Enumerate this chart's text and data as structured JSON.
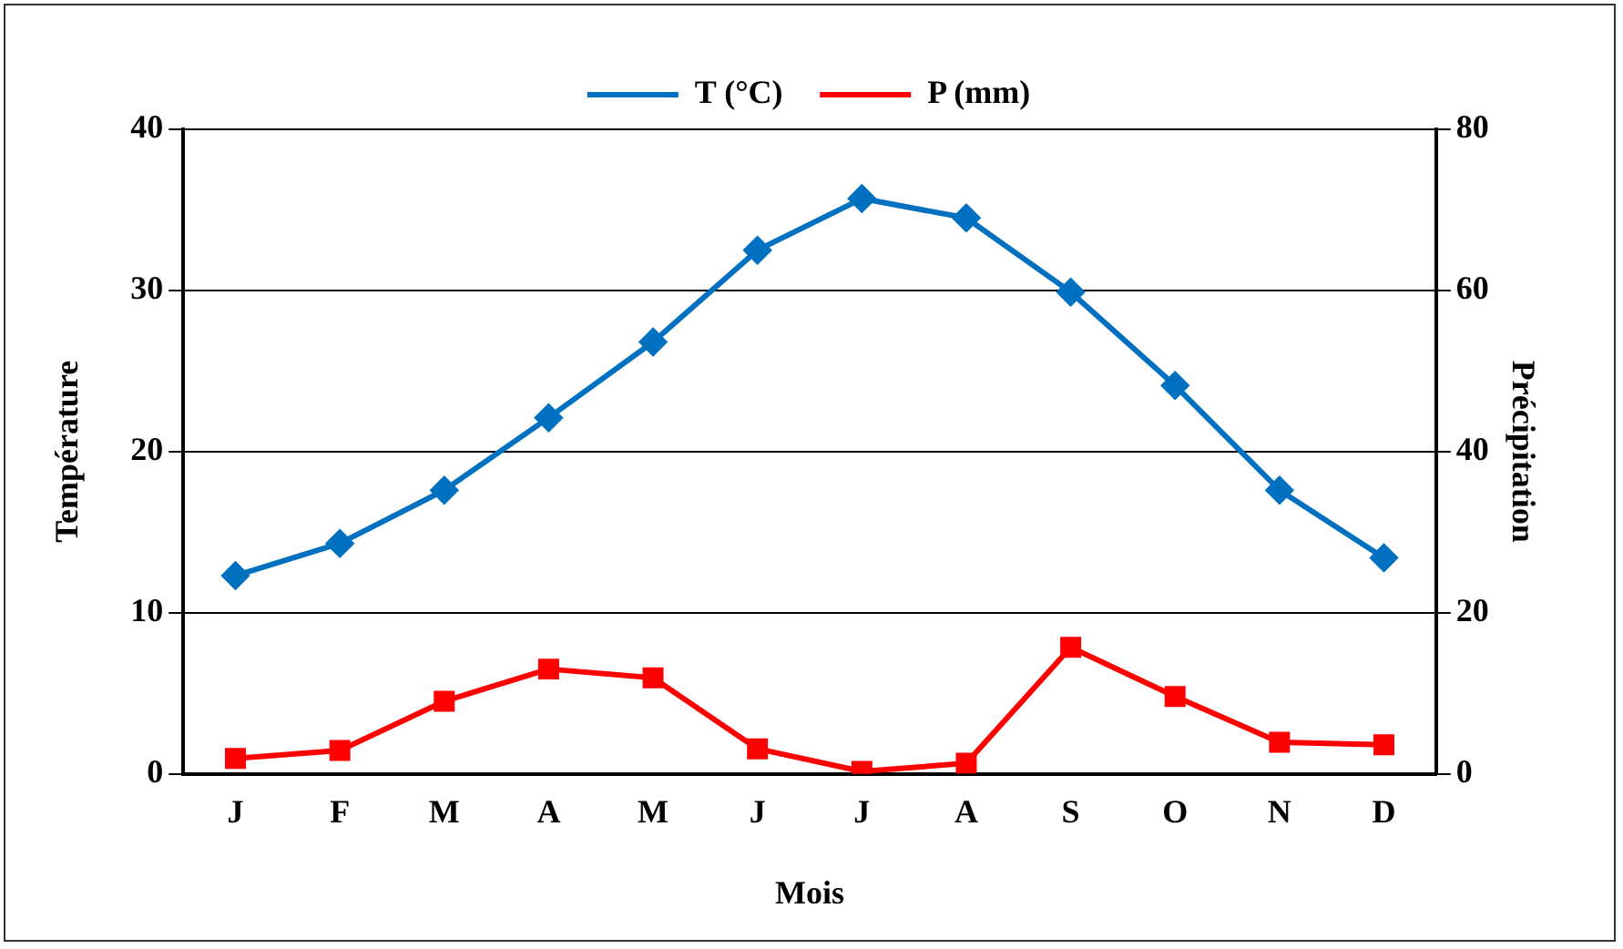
{
  "chart_data": {
    "type": "line",
    "xlabel": "Mois",
    "ylabel": "Température",
    "y2label": "Précipitation",
    "categories": [
      "J",
      "F",
      "M",
      "A",
      "M",
      "J",
      "J",
      "A",
      "S",
      "O",
      "N",
      "D"
    ],
    "series": [
      {
        "name": "T (°C)",
        "color": "#0070c0",
        "marker": "diamond",
        "values": [
          12.3,
          14.3,
          17.6,
          22.1,
          26.8,
          32.5,
          35.7,
          34.5,
          29.9,
          24.1,
          17.6,
          13.4
        ]
      },
      {
        "name": "P (mm)",
        "color": "#ff0000",
        "marker": "square",
        "axis": "y2",
        "values": [
          1.9,
          2.9,
          9.0,
          13.0,
          11.9,
          3.1,
          0.3,
          1.3,
          15.7,
          9.6,
          3.9,
          3.6
        ]
      }
    ],
    "ylim": [
      0,
      40
    ],
    "yticks": [
      0,
      10,
      20,
      30,
      40
    ],
    "y2lim": [
      0,
      80
    ],
    "y2ticks": [
      0,
      20,
      40,
      60,
      80
    ],
    "grid": "y",
    "legend": "top",
    "line_style": "solid"
  }
}
